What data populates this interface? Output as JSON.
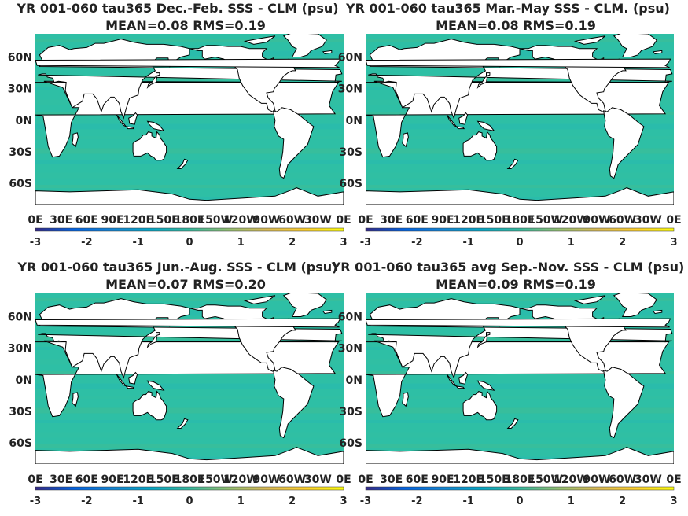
{
  "chart_data": [
    {
      "type": "heatmap",
      "title": "YR 001-060 tau365  Dec.-Feb. SSS - CLM (psu)",
      "subtitle": "MEAN=0.08   RMS=0.19",
      "x_ticks": [
        "0E",
        "30E",
        "60E",
        "90E",
        "120E",
        "150E",
        "180E",
        "150W",
        "120W",
        "90W",
        "60W",
        "30W",
        "0E"
      ],
      "y_ticks": [
        "60N",
        "30N",
        "0N",
        "30S",
        "60S"
      ],
      "colorbar": {
        "ticks": [
          "-3",
          "-2",
          "-1",
          "0",
          "1",
          "2",
          "3"
        ],
        "range": [
          -3,
          3
        ],
        "colormap": "parula"
      },
      "mean": 0.08,
      "rms": 0.19
    },
    {
      "type": "heatmap",
      "title": "YR 001-060 tau365 Mar.-May SSS - CLM. (psu)",
      "subtitle": "MEAN=0.08   RMS=0.19",
      "x_ticks": [
        "0E",
        "30E",
        "60E",
        "90E",
        "120E",
        "150E",
        "180E",
        "150W",
        "120W",
        "90W",
        "60W",
        "30W",
        "0E"
      ],
      "y_ticks": [
        "60N",
        "30N",
        "0N",
        "30S",
        "60S"
      ],
      "colorbar": {
        "ticks": [
          "-3",
          "-2",
          "-1",
          "0",
          "1",
          "2",
          "3"
        ],
        "range": [
          -3,
          3
        ],
        "colormap": "parula"
      },
      "mean": 0.08,
      "rms": 0.19
    },
    {
      "type": "heatmap",
      "title": "YR 001-060 tau365 Jun.-Aug. SSS - CLM (psu)",
      "subtitle": "MEAN=0.07   RMS=0.20",
      "x_ticks": [
        "0E",
        "30E",
        "60E",
        "90E",
        "120E",
        "150E",
        "180E",
        "150W",
        "120W",
        "90W",
        "60W",
        "30W",
        "0E"
      ],
      "y_ticks": [
        "60N",
        "30N",
        "0N",
        "30S",
        "60S"
      ],
      "colorbar": {
        "ticks": [
          "-3",
          "-2",
          "-1",
          "0",
          "1",
          "2",
          "3"
        ],
        "range": [
          -3,
          3
        ],
        "colormap": "parula"
      },
      "mean": 0.07,
      "rms": 0.2
    },
    {
      "type": "heatmap",
      "title": "YR 001-060 tau365 avg Sep.-Nov. SSS - CLM (psu)",
      "subtitle": "MEAN=0.09   RMS=0.19",
      "x_ticks": [
        "0E",
        "30E",
        "60E",
        "90E",
        "120E",
        "150E",
        "180E",
        "150W",
        "120W",
        "90W",
        "60W",
        "30W",
        "0E"
      ],
      "y_ticks": [
        "60N",
        "30N",
        "0N",
        "30S",
        "60S"
      ],
      "colorbar": {
        "ticks": [
          "-3",
          "-2",
          "-1",
          "0",
          "1",
          "2",
          "3"
        ],
        "range": [
          -3,
          3
        ],
        "colormap": "parula"
      },
      "mean": 0.09,
      "rms": 0.19
    }
  ],
  "colors": {
    "ocean": "#2ebfa5",
    "land": "#ffffff",
    "coast": "#000000",
    "parula": [
      "#352a87",
      "#0363e1",
      "#1485d4",
      "#06a7c6",
      "#38b99e",
      "#92bf73",
      "#d9ba56",
      "#fcce2e",
      "#f9fb0e"
    ]
  }
}
